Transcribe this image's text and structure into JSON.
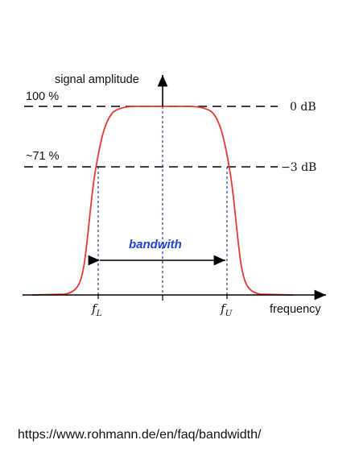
{
  "diagram": {
    "y_axis_label": "signal amplitude",
    "x_axis_label": "frequency",
    "level_high_pct": "100 %",
    "level_mid_pct": "~71 %",
    "level_high_db": "0 dB",
    "level_mid_db": "−3 dB",
    "lower_freq_symbol": "f",
    "lower_freq_sub": "L",
    "upper_freq_symbol": "f",
    "upper_freq_sub": "U",
    "band_label": "bandwith"
  },
  "colors": {
    "curve": "#e53935",
    "center_line": "#1f3f8a",
    "band_label": "#1f3fd6",
    "axis": "#000000"
  },
  "source_url": "https://www.rohmann.de/en/faq/bandwidth/"
}
